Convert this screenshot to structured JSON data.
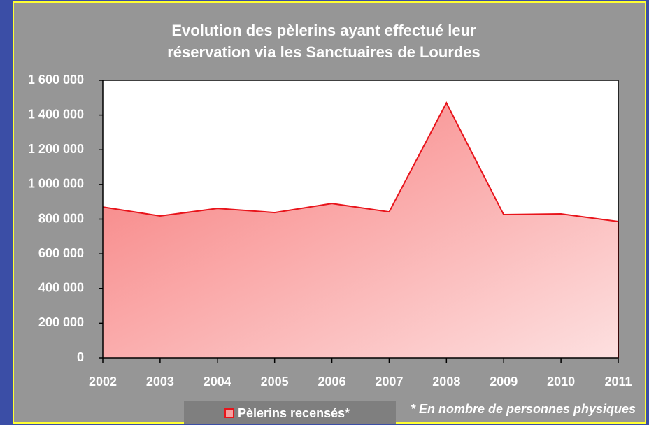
{
  "chart_data": {
    "type": "area",
    "title": [
      "Evolution des pèlerins ayant effectué leur",
      "réservation via les Sanctuaires de Lourdes"
    ],
    "categories": [
      "2002",
      "2003",
      "2004",
      "2005",
      "2006",
      "2007",
      "2008",
      "2009",
      "2010",
      "2011"
    ],
    "series": [
      {
        "name": "Pèlerins recensés*",
        "color": "#e8141b",
        "values": [
          870000,
          818000,
          862000,
          838000,
          890000,
          842000,
          1470000,
          826000,
          830000,
          786000
        ]
      }
    ],
    "ylim": [
      0,
      1600000
    ],
    "yticks": [
      0,
      {
        "value": 200000,
        "label": "200 000"
      },
      {
        "value": 400000,
        "label": "400 000"
      },
      {
        "value": 600000,
        "label": "600 000"
      },
      {
        "value": 800000,
        "label": "800 000"
      },
      {
        "value": 1000000,
        "label": "1 000 000"
      },
      {
        "value": 1200000,
        "label": "1 200 000"
      },
      {
        "value": 1400000,
        "label": "1 400 000"
      },
      {
        "value": 1600000,
        "label": "1 600 000"
      }
    ],
    "footnote": "* En nombre de personnes physiques",
    "legend": "bottom"
  }
}
